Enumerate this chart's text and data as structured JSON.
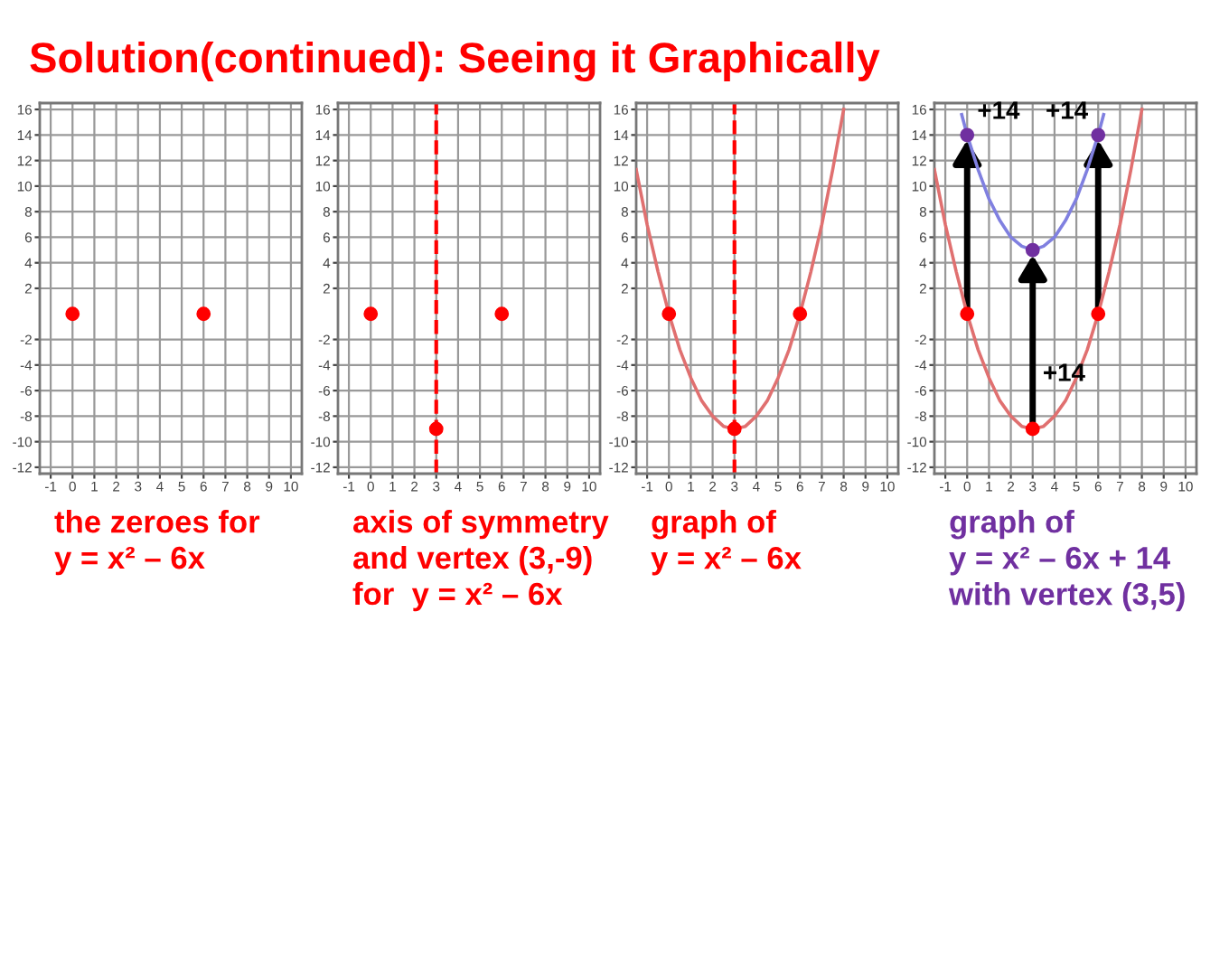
{
  "chart_data": [
    {
      "type": "scatter",
      "title": "Solution(continued): Seeing it Graphically",
      "xlabel": "the zeroes for\ny = x² – 6x",
      "xlim": [
        -1.5,
        10.5
      ],
      "ylim": [
        -12.5,
        16.5
      ],
      "xticks": [
        -1,
        0,
        1,
        2,
        3,
        4,
        5,
        6,
        7,
        8,
        9,
        10
      ],
      "yticks": [
        -12,
        -10,
        -8,
        -6,
        -4,
        -2,
        2,
        4,
        6,
        8,
        10,
        12,
        14,
        16
      ],
      "grid": true,
      "marker": "circle",
      "series": [
        {
          "color": "#ff0000",
          "x": [
            0,
            6
          ],
          "values": [
            0,
            0
          ]
        }
      ]
    },
    {
      "type": "scatter",
      "xlabel": "axis of symmetry\nand vertex (3,-9)\nfor  y = x² – 6x",
      "xlim": [
        -1.5,
        10.5
      ],
      "ylim": [
        -12.5,
        16.5
      ],
      "xticks": [
        -1,
        0,
        1,
        2,
        3,
        4,
        5,
        6,
        7,
        8,
        9,
        10
      ],
      "yticks": [
        -12,
        -10,
        -8,
        -6,
        -4,
        -2,
        2,
        4,
        6,
        8,
        10,
        12,
        14,
        16
      ],
      "grid": true,
      "marker": "circle",
      "ref_lines": [
        {
          "axis": "x",
          "value": 3,
          "color": "#ff0000",
          "line_style": "dashed"
        }
      ],
      "series": [
        {
          "color": "#ff0000",
          "x": [
            0,
            6,
            3
          ],
          "values": [
            0,
            0,
            -9
          ]
        }
      ]
    },
    {
      "type": "line",
      "xlabel": "graph of\ny = x² – 6x",
      "xlim": [
        -1.5,
        10.5
      ],
      "ylim": [
        -12.5,
        16.5
      ],
      "xticks": [
        -1,
        0,
        1,
        2,
        3,
        4,
        5,
        6,
        7,
        8,
        9,
        10
      ],
      "yticks": [
        -12,
        -10,
        -8,
        -6,
        -4,
        -2,
        2,
        4,
        6,
        8,
        10,
        12,
        14,
        16
      ],
      "grid": true,
      "ref_lines": [
        {
          "axis": "x",
          "value": 3,
          "color": "#ff0000",
          "line_style": "dashed"
        }
      ],
      "series": [
        {
          "color": "#e07070",
          "x": [
            -1.5,
            -1,
            -0.5,
            0,
            0.5,
            1,
            1.5,
            2,
            2.5,
            3,
            3.5,
            4,
            4.5,
            5,
            5.5,
            6,
            6.5,
            7,
            7.5,
            8
          ],
          "values": [
            11.3,
            7,
            3.3,
            0,
            -2.8,
            -5,
            -6.8,
            -8,
            -8.8,
            -9,
            -8.8,
            -8,
            -6.8,
            -5,
            -2.8,
            0,
            3.3,
            7,
            11.3,
            16
          ]
        },
        {
          "type": "scatter",
          "color": "#ff0000",
          "x": [
            0,
            6,
            3
          ],
          "values": [
            0,
            0,
            -9
          ]
        }
      ]
    },
    {
      "type": "line",
      "xlabel": "graph of\ny = x² – 6x + 14\nwith vertex (3,5)",
      "xlim": [
        -1.5,
        10.5
      ],
      "ylim": [
        -12.5,
        16.5
      ],
      "xticks": [
        -1,
        0,
        1,
        2,
        3,
        4,
        5,
        6,
        7,
        8,
        9,
        10
      ],
      "yticks": [
        -12,
        -10,
        -8,
        -6,
        -4,
        -2,
        2,
        4,
        6,
        8,
        10,
        12,
        14,
        16
      ],
      "grid": true,
      "annotations": [
        "+14",
        "+14",
        "+14"
      ],
      "series": [
        {
          "color": "#e07070",
          "x": [
            -1.5,
            -1,
            -0.5,
            0,
            0.5,
            1,
            1.5,
            2,
            2.5,
            3,
            3.5,
            4,
            4.5,
            5,
            5.5,
            6,
            6.5,
            7,
            7.5,
            8
          ],
          "values": [
            11.3,
            7,
            3.3,
            0,
            -2.8,
            -5,
            -6.8,
            -8,
            -8.8,
            -9,
            -8.8,
            -8,
            -6.8,
            -5,
            -2.8,
            0,
            3.3,
            7,
            11.3,
            16
          ]
        },
        {
          "color": "#8080e0",
          "x": [
            -0.25,
            0,
            0.5,
            1,
            1.5,
            2,
            2.5,
            3,
            3.5,
            4,
            4.5,
            5,
            5.5,
            6,
            6.25
          ],
          "values": [
            15.6,
            14,
            11.3,
            9,
            7.3,
            6,
            5.3,
            5,
            5.3,
            6,
            7.3,
            9,
            11.3,
            14,
            15.6
          ]
        },
        {
          "type": "scatter",
          "color": "#ff0000",
          "x": [
            0,
            3,
            6
          ],
          "values": [
            0,
            -9,
            0
          ]
        },
        {
          "type": "scatter",
          "color": "#7030a0",
          "x": [
            0,
            3,
            6
          ],
          "values": [
            14,
            5,
            14
          ]
        }
      ]
    }
  ]
}
